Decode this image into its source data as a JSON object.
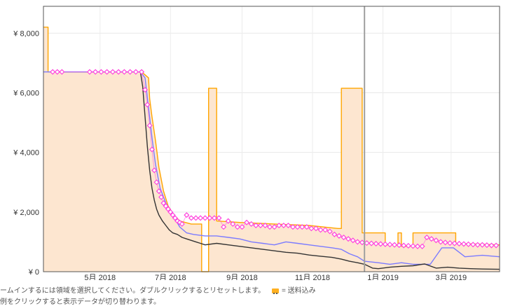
{
  "chart_data": {
    "type": "line",
    "title": "",
    "xlabel": "",
    "ylabel": "",
    "x_ticks": [
      "5月 2018",
      "7月 2018",
      "9月 2018",
      "11月 2018",
      "1月 2019",
      "3月 2019"
    ],
    "y_ticks": [
      "¥ 0",
      "¥ 2,000",
      "¥ 4,000",
      "¥ 6,000",
      "¥ 8,000"
    ],
    "ylim": [
      0,
      8900
    ],
    "xlim_days": [
      0,
      395
    ],
    "x_tick_days": [
      49,
      110,
      172,
      233,
      294,
      353
    ],
    "grid": true,
    "cursor_day": 278,
    "series": [
      {
        "color": "#ffa500",
        "fill": "#fde6d0",
        "points": [
          [
            0,
            8200
          ],
          [
            4,
            8200
          ],
          [
            4,
            6700
          ],
          [
            85,
            6700
          ],
          [
            91,
            6500
          ],
          [
            92,
            5800
          ],
          [
            94,
            5200
          ],
          [
            97,
            4400
          ],
          [
            100,
            3500
          ],
          [
            104,
            2700
          ],
          [
            108,
            2200
          ],
          [
            113,
            1900
          ],
          [
            118,
            1700
          ],
          [
            128,
            1600
          ],
          [
            137,
            1600
          ],
          [
            137,
            0
          ],
          [
            143,
            0
          ],
          [
            143,
            6150
          ],
          [
            150,
            6150
          ],
          [
            150,
            1700
          ],
          [
            170,
            1650
          ],
          [
            200,
            1600
          ],
          [
            230,
            1550
          ],
          [
            255,
            1450
          ],
          [
            258,
            1450
          ],
          [
            258,
            6150
          ],
          [
            276,
            6150
          ],
          [
            276,
            1300
          ],
          [
            296,
            1300
          ],
          [
            296,
            900
          ],
          [
            307,
            900
          ],
          [
            307,
            1300
          ],
          [
            310,
            1300
          ],
          [
            310,
            850
          ],
          [
            320,
            850
          ],
          [
            320,
            1300
          ],
          [
            357,
            1300
          ],
          [
            357,
            950
          ],
          [
            395,
            900
          ]
        ]
      },
      {
        "color": "#7b7bff",
        "points": [
          [
            0,
            6700
          ],
          [
            84,
            6700
          ],
          [
            88,
            6500
          ],
          [
            91,
            5500
          ],
          [
            94,
            4500
          ],
          [
            97,
            3600
          ],
          [
            101,
            2800
          ],
          [
            106,
            2300
          ],
          [
            112,
            1900
          ],
          [
            118,
            1500
          ],
          [
            124,
            1300
          ],
          [
            130,
            1250
          ],
          [
            140,
            1200
          ],
          [
            150,
            1200
          ],
          [
            160,
            1150
          ],
          [
            170,
            1100
          ],
          [
            180,
            1000
          ],
          [
            190,
            950
          ],
          [
            200,
            900
          ],
          [
            210,
            1000
          ],
          [
            220,
            950
          ],
          [
            230,
            900
          ],
          [
            240,
            850
          ],
          [
            250,
            800
          ],
          [
            258,
            750
          ],
          [
            265,
            600
          ],
          [
            272,
            500
          ],
          [
            278,
            350
          ],
          [
            290,
            300
          ],
          [
            300,
            250
          ],
          [
            310,
            300
          ],
          [
            320,
            250
          ],
          [
            335,
            250
          ],
          [
            345,
            800
          ],
          [
            355,
            800
          ],
          [
            365,
            500
          ],
          [
            380,
            550
          ],
          [
            395,
            500
          ]
        ]
      },
      {
        "color": "#333333",
        "points": [
          [
            84,
            6700
          ],
          [
            86,
            6200
          ],
          [
            88,
            5200
          ],
          [
            90,
            4200
          ],
          [
            92,
            3400
          ],
          [
            94,
            2800
          ],
          [
            96,
            2400
          ],
          [
            98,
            2100
          ],
          [
            100,
            1900
          ],
          [
            103,
            1700
          ],
          [
            106,
            1550
          ],
          [
            109,
            1400
          ],
          [
            112,
            1300
          ],
          [
            116,
            1250
          ],
          [
            120,
            1150
          ],
          [
            124,
            1100
          ],
          [
            128,
            1050
          ],
          [
            132,
            1000
          ],
          [
            136,
            950
          ],
          [
            140,
            900
          ],
          [
            150,
            950
          ],
          [
            160,
            900
          ],
          [
            170,
            850
          ],
          [
            180,
            800
          ],
          [
            190,
            750
          ],
          [
            200,
            700
          ],
          [
            210,
            650
          ],
          [
            220,
            620
          ],
          [
            230,
            560
          ],
          [
            240,
            520
          ],
          [
            250,
            480
          ],
          [
            258,
            420
          ],
          [
            265,
            350
          ],
          [
            272,
            300
          ],
          [
            278,
            250
          ],
          [
            285,
            120
          ],
          [
            290,
            100
          ],
          [
            300,
            150
          ],
          [
            310,
            180
          ],
          [
            320,
            200
          ],
          [
            330,
            260
          ],
          [
            340,
            120
          ],
          [
            350,
            150
          ],
          [
            360,
            120
          ],
          [
            370,
            100
          ],
          [
            380,
            90
          ],
          [
            395,
            80
          ]
        ]
      },
      {
        "color": "#ff44dd",
        "marker": "diamond",
        "points": [
          [
            8,
            6700
          ],
          [
            12,
            6700
          ],
          [
            16,
            6700
          ],
          [
            40,
            6700
          ],
          [
            45,
            6700
          ],
          [
            50,
            6700
          ],
          [
            55,
            6700
          ],
          [
            60,
            6700
          ],
          [
            65,
            6700
          ],
          [
            70,
            6700
          ],
          [
            75,
            6700
          ],
          [
            80,
            6700
          ],
          [
            85,
            6700
          ],
          [
            88,
            6100
          ],
          [
            90,
            5600
          ],
          [
            92,
            4900
          ],
          [
            94,
            4100
          ],
          [
            96,
            3400
          ],
          [
            98,
            3000
          ],
          [
            100,
            2700
          ],
          [
            102,
            2500
          ],
          [
            104,
            2300
          ],
          [
            106,
            2200
          ],
          [
            108,
            2100
          ],
          [
            110,
            2000
          ],
          [
            112,
            1900
          ],
          [
            114,
            1800
          ],
          [
            116,
            1700
          ],
          [
            118,
            1650
          ],
          [
            120,
            1600
          ],
          [
            124,
            1900
          ],
          [
            128,
            1800
          ],
          [
            132,
            1800
          ],
          [
            136,
            1800
          ],
          [
            140,
            1800
          ],
          [
            144,
            1800
          ],
          [
            148,
            1800
          ],
          [
            152,
            1800
          ],
          [
            156,
            1500
          ],
          [
            160,
            1700
          ],
          [
            164,
            1600
          ],
          [
            168,
            1500
          ],
          [
            172,
            1500
          ],
          [
            176,
            1650
          ],
          [
            180,
            1600
          ],
          [
            184,
            1550
          ],
          [
            188,
            1550
          ],
          [
            192,
            1550
          ],
          [
            196,
            1500
          ],
          [
            200,
            1500
          ],
          [
            204,
            1550
          ],
          [
            208,
            1550
          ],
          [
            212,
            1550
          ],
          [
            216,
            1500
          ],
          [
            220,
            1500
          ],
          [
            224,
            1500
          ],
          [
            228,
            1500
          ],
          [
            232,
            1450
          ],
          [
            236,
            1450
          ],
          [
            240,
            1400
          ],
          [
            244,
            1400
          ],
          [
            248,
            1350
          ],
          [
            252,
            1250
          ],
          [
            256,
            1200
          ],
          [
            260,
            1150
          ],
          [
            264,
            1100
          ],
          [
            268,
            1050
          ],
          [
            272,
            1000
          ],
          [
            276,
            980
          ],
          [
            280,
            960
          ],
          [
            284,
            950
          ],
          [
            288,
            940
          ],
          [
            292,
            930
          ],
          [
            296,
            920
          ],
          [
            300,
            910
          ],
          [
            304,
            900
          ],
          [
            308,
            890
          ],
          [
            312,
            880
          ],
          [
            316,
            870
          ],
          [
            320,
            860
          ],
          [
            324,
            850
          ],
          [
            328,
            850
          ],
          [
            332,
            1150
          ],
          [
            336,
            1100
          ],
          [
            340,
            1050
          ],
          [
            344,
            1000
          ],
          [
            348,
            980
          ],
          [
            352,
            960
          ],
          [
            356,
            950
          ],
          [
            360,
            940
          ],
          [
            364,
            930
          ],
          [
            368,
            920
          ],
          [
            372,
            910
          ],
          [
            376,
            900
          ],
          [
            380,
            900
          ],
          [
            384,
            890
          ],
          [
            388,
            880
          ],
          [
            392,
            880
          ]
        ]
      }
    ]
  },
  "help": {
    "line1": "ームインするには領域を選択してください。ダブルクリックするとリセットします。",
    "shipping_label": "= 送料込み",
    "line2": "例をクリックすると表示データが切り替わります。"
  }
}
